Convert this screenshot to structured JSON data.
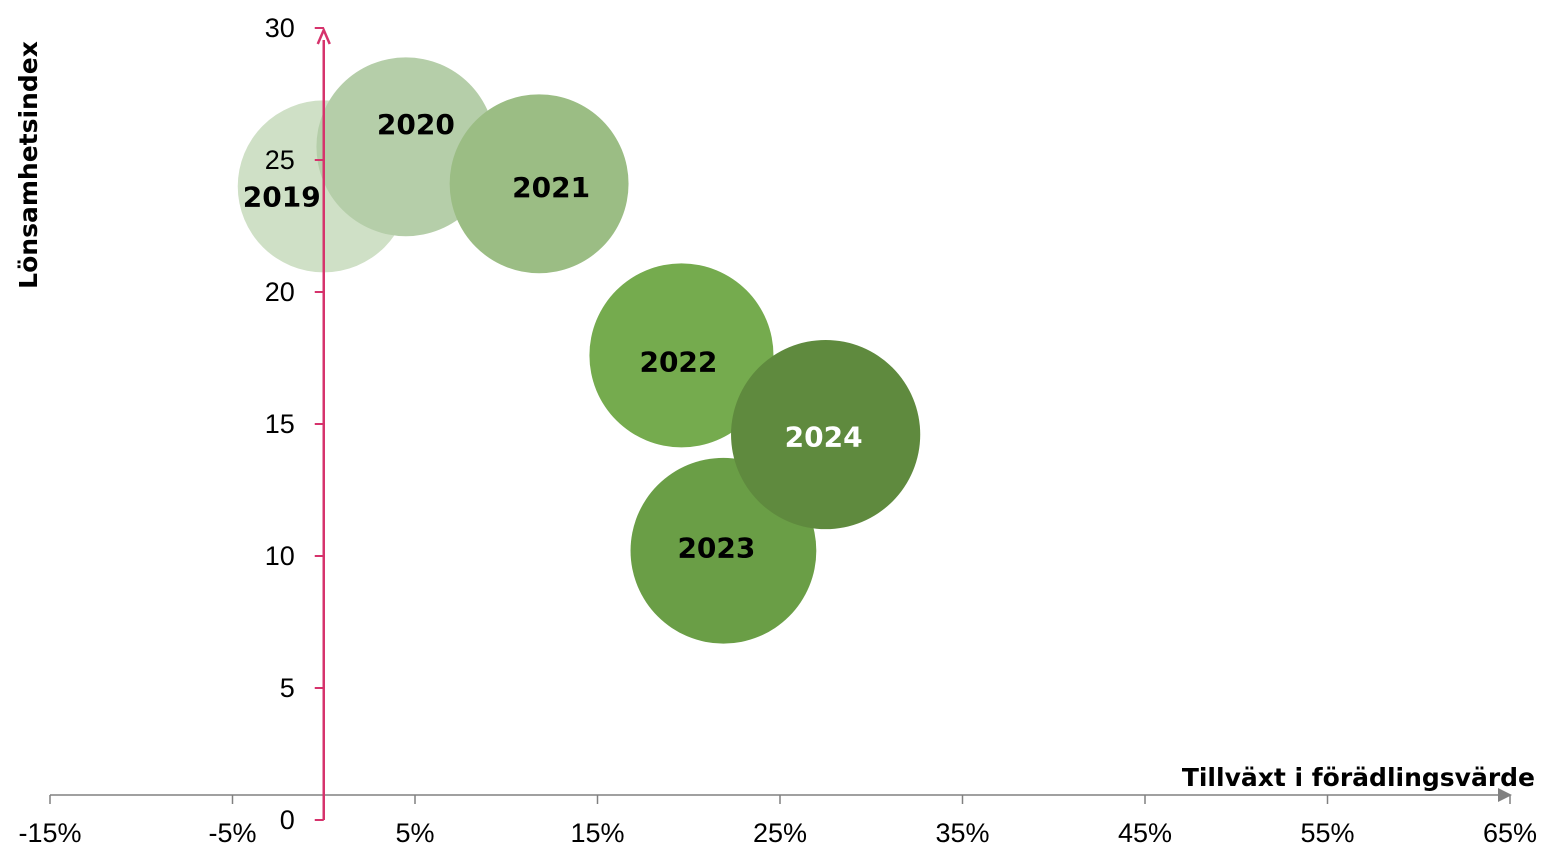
{
  "chart_data": {
    "type": "bubble",
    "title": "",
    "xlabel": "Tillväxt i förädlingsvärde",
    "ylabel": "Lönsamhetsindex",
    "xlim": [
      -15,
      65
    ],
    "ylim": [
      0,
      30
    ],
    "x_ticks": [
      -15,
      -5,
      5,
      15,
      25,
      35,
      45,
      55,
      65
    ],
    "x_tick_labels": [
      "-15%",
      "-5%",
      "5%",
      "15%",
      "25%",
      "35%",
      "45%",
      "55%",
      "65%"
    ],
    "y_ticks": [
      0,
      5,
      10,
      15,
      20,
      25,
      30
    ],
    "y_tick_labels": [
      "0",
      "5",
      "10",
      "15",
      "20",
      "25",
      "30"
    ],
    "grid": false,
    "legend": "none",
    "colors": {
      "x_axis": "#808080",
      "y_axis": "#d6336c"
    },
    "points": [
      {
        "label": "2019",
        "x": 0.0,
        "y": 24.0,
        "size": 1.0,
        "color": "#cfe0c6",
        "text_color": "#000000"
      },
      {
        "label": "2020",
        "x": 4.5,
        "y": 25.5,
        "size": 1.04,
        "color": "#b5cea9",
        "text_color": "#000000"
      },
      {
        "label": "2021",
        "x": 11.8,
        "y": 24.1,
        "size": 1.04,
        "color": "#9bbd84",
        "text_color": "#000000"
      },
      {
        "label": "2022",
        "x": 19.6,
        "y": 17.6,
        "size": 1.07,
        "color": "#75ab4e",
        "text_color": "#000000"
      },
      {
        "label": "2023",
        "x": 21.9,
        "y": 10.2,
        "size": 1.08,
        "color": "#6a9e46",
        "text_color": "#000000"
      },
      {
        "label": "2024",
        "x": 27.5,
        "y": 14.6,
        "size": 1.1,
        "color": "#5f8a3e",
        "text_color": "#ffffff"
      }
    ]
  }
}
